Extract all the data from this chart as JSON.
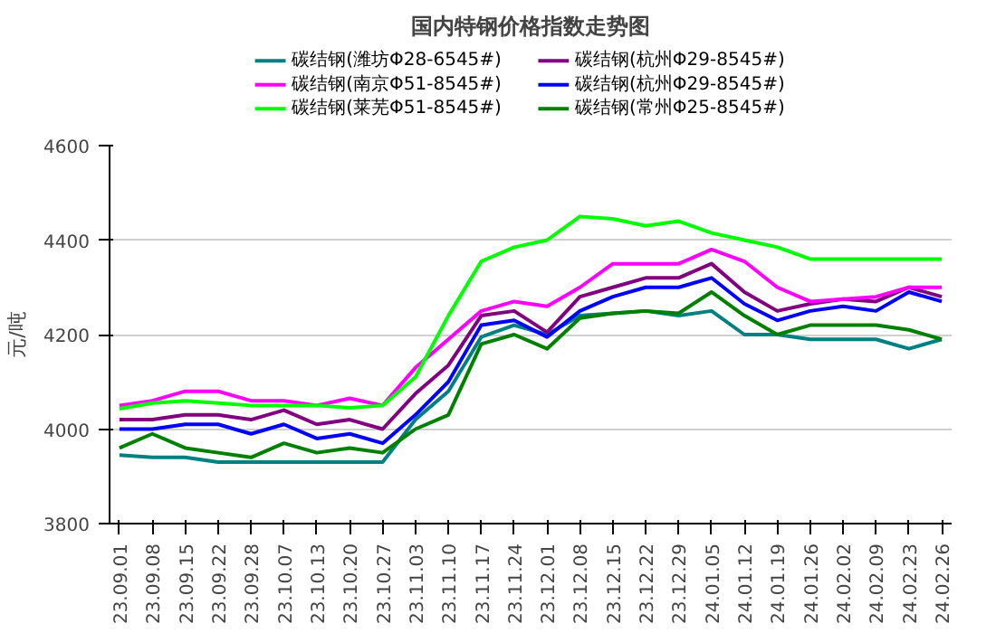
{
  "chart_data": {
    "type": "line",
    "title": "国内特钢价格指数走势图",
    "ylabel": "元/吨",
    "categories": [
      "23.09.01",
      "23.09.08",
      "23.09.15",
      "23.09.22",
      "23.09.28",
      "23.10.07",
      "23.10.13",
      "23.10.20",
      "23.10.27",
      "23.11.03",
      "23.11.10",
      "23.11.17",
      "23.11.24",
      "23.12.01",
      "23.12.08",
      "23.12.15",
      "23.12.22",
      "23.12.29",
      "24.01.05",
      "24.01.12",
      "24.01.19",
      "24.01.26",
      "24.02.02",
      "24.02.09",
      "24.02.23",
      "24.02.26"
    ],
    "ylim": [
      3800,
      4600
    ],
    "yticks": [
      3800,
      4000,
      4200,
      4400,
      4600
    ],
    "grid": "y",
    "legend": "top",
    "marker": "none",
    "line_style": "solid",
    "series": [
      {
        "name": "碳结钢(潍坊Φ28-6545#)",
        "color": "#008080",
        "values": [
          3945,
          3940,
          3940,
          3930,
          3930,
          3930,
          3930,
          3930,
          3930,
          4020,
          4080,
          4195,
          4220,
          4200,
          4240,
          4245,
          4250,
          4240,
          4250,
          4200,
          4200,
          4190,
          4190,
          4190,
          4170,
          4190
        ]
      },
      {
        "name": "碳结钢(杭州Φ29-8545#)",
        "color": "#800080",
        "values": [
          4020,
          4020,
          4030,
          4030,
          4020,
          4040,
          4010,
          4020,
          4000,
          4075,
          4135,
          4240,
          4250,
          4205,
          4280,
          4300,
          4320,
          4320,
          4350,
          4290,
          4250,
          4265,
          4275,
          4270,
          4300,
          4280
        ]
      },
      {
        "name": "碳结钢(南京Φ51-8545#)",
        "color": "#ff00ff",
        "values": [
          4050,
          4060,
          4080,
          4080,
          4060,
          4060,
          4050,
          4065,
          4050,
          4130,
          4190,
          4250,
          4270,
          4260,
          4300,
          4350,
          4350,
          4350,
          4380,
          4355,
          4300,
          4270,
          4275,
          4280,
          4300,
          4300
        ]
      },
      {
        "name": "碳结钢(杭州Φ29-8545#)",
        "color": "#0000ff",
        "values": [
          4000,
          4000,
          4010,
          4010,
          3990,
          4010,
          3980,
          3990,
          3970,
          4030,
          4100,
          4220,
          4230,
          4195,
          4250,
          4280,
          4300,
          4300,
          4320,
          4265,
          4230,
          4250,
          4260,
          4250,
          4290,
          4270
        ]
      },
      {
        "name": "碳结钢(莱芜Φ51-8545#)",
        "color": "#00ff00",
        "values": [
          4043,
          4055,
          4060,
          4055,
          4050,
          4050,
          4050,
          4045,
          4050,
          4110,
          4240,
          4355,
          4385,
          4400,
          4450,
          4445,
          4430,
          4440,
          4415,
          4400,
          4385,
          4360,
          4360,
          4360,
          4360,
          4360
        ]
      },
      {
        "name": "碳结钢(常州Φ25-8545#)",
        "color": "#008000",
        "values": [
          3960,
          3990,
          3960,
          3950,
          3940,
          3970,
          3950,
          3960,
          3950,
          4000,
          4030,
          4180,
          4200,
          4170,
          4235,
          4245,
          4250,
          4245,
          4290,
          4240,
          4200,
          4220,
          4220,
          4220,
          4210,
          4190
        ]
      }
    ]
  }
}
